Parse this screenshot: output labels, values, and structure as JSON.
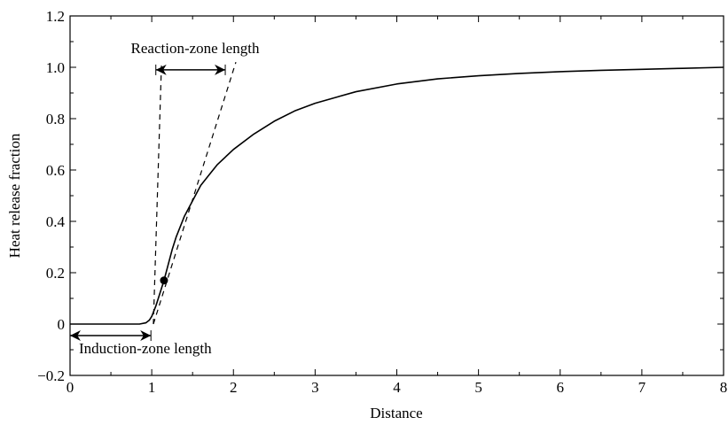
{
  "chart_data": {
    "type": "line",
    "xlabel": "Distance",
    "ylabel": "Heat release fraction",
    "xlim": [
      0,
      8
    ],
    "ylim": [
      -0.2,
      1.2
    ],
    "x_ticks": [
      {
        "value": 0,
        "label": "0"
      },
      {
        "value": 1,
        "label": "1"
      },
      {
        "value": 2,
        "label": "2"
      },
      {
        "value": 3,
        "label": "3"
      },
      {
        "value": 4,
        "label": "4"
      },
      {
        "value": 5,
        "label": "5"
      },
      {
        "value": 6,
        "label": "6"
      },
      {
        "value": 7,
        "label": "7"
      },
      {
        "value": 8,
        "label": "8"
      }
    ],
    "y_ticks": [
      {
        "value": -0.2,
        "label": "−0.2"
      },
      {
        "value": 0,
        "label": "0"
      },
      {
        "value": 0.2,
        "label": "0.2"
      },
      {
        "value": 0.4,
        "label": "0.4"
      },
      {
        "value": 0.6,
        "label": "0.6"
      },
      {
        "value": 0.8,
        "label": "0.8"
      },
      {
        "value": 1.0,
        "label": "1.0"
      },
      {
        "value": 1.2,
        "label": "1.2"
      }
    ],
    "grid": false,
    "series": [
      {
        "points": [
          [
            0,
            0
          ],
          [
            0.5,
            0
          ],
          [
            0.85,
            0
          ],
          [
            0.93,
            0.005
          ],
          [
            0.97,
            0.015
          ],
          [
            1.0,
            0.03
          ],
          [
            1.05,
            0.07
          ],
          [
            1.1,
            0.12
          ],
          [
            1.15,
            0.17
          ],
          [
            1.2,
            0.23
          ],
          [
            1.25,
            0.29
          ],
          [
            1.3,
            0.34
          ],
          [
            1.4,
            0.42
          ],
          [
            1.5,
            0.48
          ],
          [
            1.6,
            0.54
          ],
          [
            1.7,
            0.58
          ],
          [
            1.8,
            0.62
          ],
          [
            2.0,
            0.68
          ],
          [
            2.25,
            0.74
          ],
          [
            2.5,
            0.79
          ],
          [
            2.75,
            0.83
          ],
          [
            3.0,
            0.86
          ],
          [
            3.5,
            0.905
          ],
          [
            4.0,
            0.935
          ],
          [
            4.5,
            0.955
          ],
          [
            5.0,
            0.967
          ],
          [
            5.5,
            0.976
          ],
          [
            6.0,
            0.983
          ],
          [
            6.5,
            0.988
          ],
          [
            7.0,
            0.992
          ],
          [
            7.5,
            0.996
          ],
          [
            8.0,
            1.0
          ]
        ],
        "color": "#000000",
        "style": "solid"
      }
    ],
    "marker": {
      "x": 1.15,
      "y": 0.17
    },
    "tangent_lines": [
      {
        "from": [
          1.02,
          0
        ],
        "to": [
          1.12,
          1.02
        ],
        "style": "dashed"
      },
      {
        "from": [
          1.02,
          0
        ],
        "to": [
          2.03,
          1.02
        ],
        "style": "dashed"
      }
    ],
    "annotations": [
      {
        "text": "Reaction-zone length",
        "x": 1.37,
        "y": 1.085
      },
      {
        "text": "Induction-zone length",
        "x": 0.1,
        "y": -0.11
      }
    ],
    "arrows": [
      {
        "from": [
          1.05,
          0.99
        ],
        "to": [
          1.9,
          0.99
        ],
        "double_headed": true
      },
      {
        "from": [
          0.0,
          -0.045
        ],
        "to": [
          0.99,
          -0.045
        ],
        "double_headed": true
      }
    ]
  }
}
